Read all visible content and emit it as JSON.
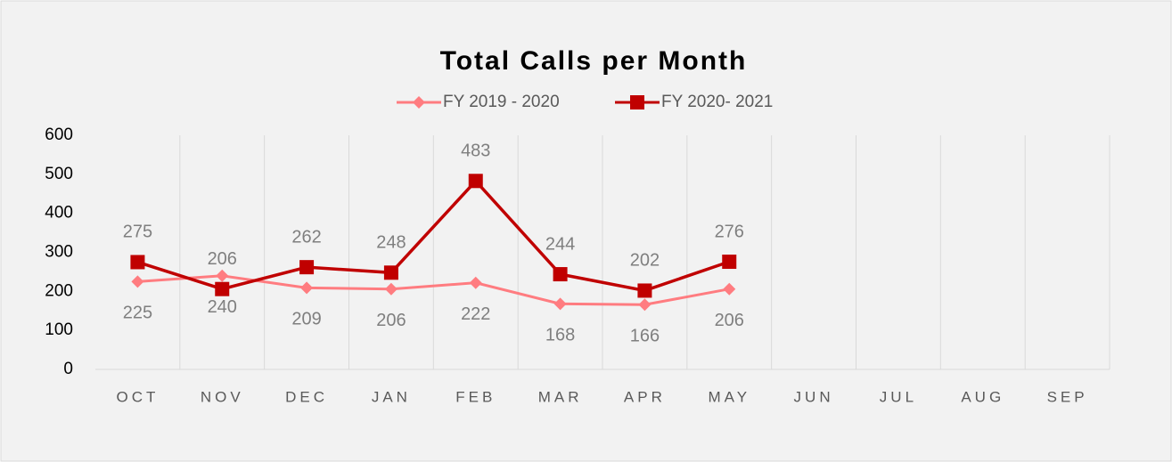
{
  "chart_data": {
    "type": "line",
    "title": "Total Calls per Month",
    "categories": [
      "OCT",
      "NOV",
      "DEC",
      "JAN",
      "FEB",
      "MAR",
      "APR",
      "MAY",
      "JUN",
      "JUL",
      "AUG",
      "SEP"
    ],
    "series": [
      {
        "name": "FY 2019 - 2020",
        "color": "#ff7c80",
        "marker": "diamond",
        "values": [
          225,
          240,
          209,
          206,
          222,
          168,
          166,
          206,
          null,
          null,
          null,
          null
        ]
      },
      {
        "name": "FY 2020- 2021",
        "color": "#c00000",
        "marker": "square",
        "values": [
          275,
          206,
          262,
          248,
          483,
          244,
          202,
          276,
          null,
          null,
          null,
          null
        ]
      }
    ],
    "ylim": [
      0,
      600
    ],
    "yticks": [
      0,
      100,
      200,
      300,
      400,
      500,
      600
    ],
    "grid": false,
    "legend": "top"
  }
}
